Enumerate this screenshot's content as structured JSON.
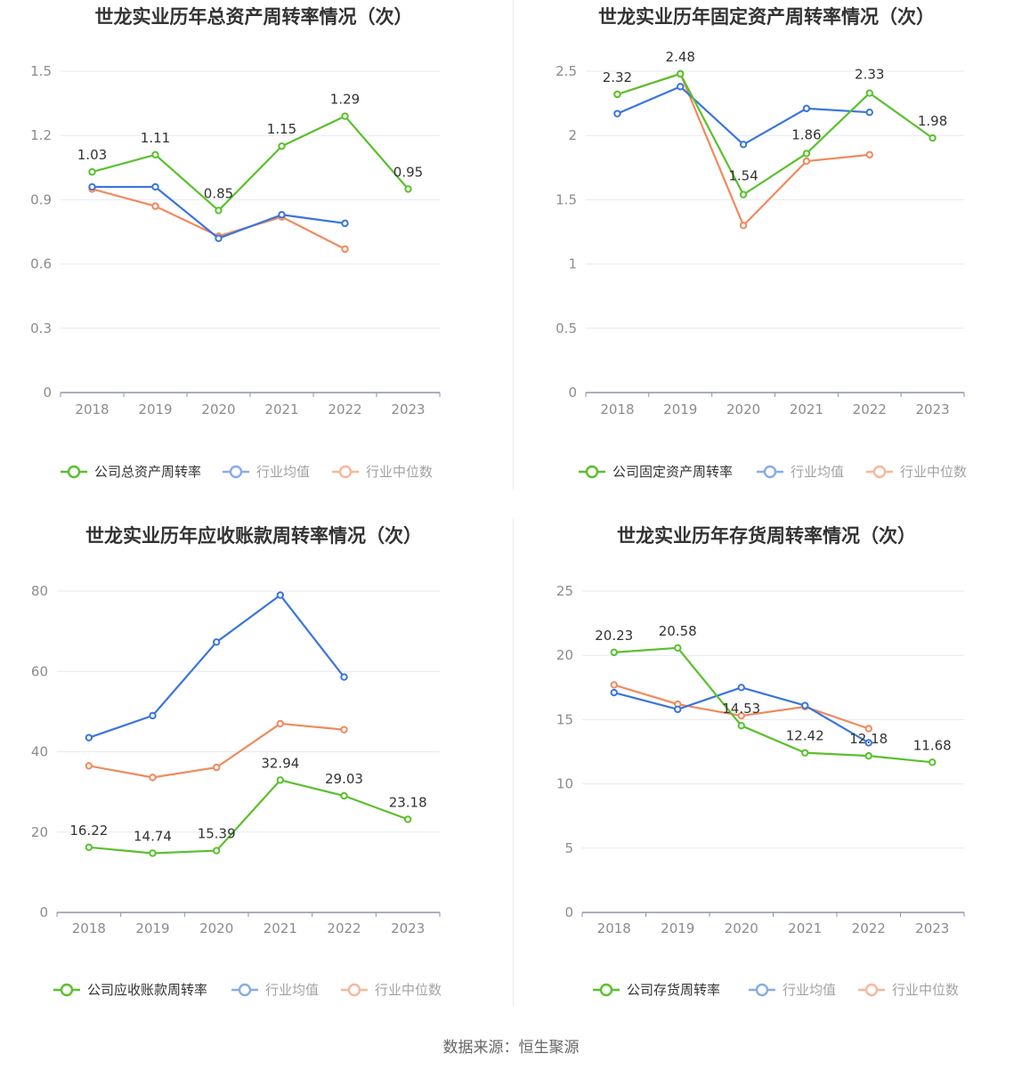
{
  "source": "数据来源：恒生聚源",
  "colors": {
    "company": "#5ac02d",
    "industry_avg": "#3a75dd",
    "industry_median": "#f08a5d"
  },
  "chart_data": [
    {
      "type": "line",
      "title": "世龙实业历年总资产周转率情况（次）",
      "categories": [
        "2018",
        "2019",
        "2020",
        "2021",
        "2022",
        "2023"
      ],
      "ylim": [
        0,
        1.5
      ],
      "yticks": [
        "0",
        "0.3",
        "0.6",
        "0.9",
        "1.2",
        "1.5"
      ],
      "series": [
        {
          "name": "公司总资产周转率",
          "values": [
            1.03,
            1.11,
            0.85,
            1.15,
            1.29,
            0.95
          ],
          "labels": [
            "1.03",
            "1.11",
            "0.85",
            "1.15",
            "1.29",
            "0.95"
          ]
        },
        {
          "name": "行业均值",
          "values": [
            0.96,
            0.96,
            0.72,
            0.83,
            0.79,
            null
          ]
        },
        {
          "name": "行业中位数",
          "values": [
            0.95,
            0.87,
            0.73,
            0.82,
            0.67,
            null
          ]
        }
      ]
    },
    {
      "type": "line",
      "title": "世龙实业历年固定资产周转率情况（次）",
      "categories": [
        "2018",
        "2019",
        "2020",
        "2021",
        "2022",
        "2023"
      ],
      "ylim": [
        0,
        2.5
      ],
      "yticks": [
        "0",
        "0.5",
        "1",
        "1.5",
        "2",
        "2.5"
      ],
      "series": [
        {
          "name": "公司固定资产周转率",
          "values": [
            2.32,
            2.48,
            1.54,
            1.86,
            2.33,
            1.98
          ],
          "labels": [
            "2.32",
            "2.48",
            "1.54",
            "1.86",
            "2.33",
            "1.98"
          ]
        },
        {
          "name": "行业均值",
          "values": [
            2.17,
            2.38,
            1.93,
            2.21,
            2.18,
            null
          ]
        },
        {
          "name": "行业中位数",
          "values": [
            2.32,
            2.48,
            1.3,
            1.8,
            1.85,
            null
          ]
        }
      ]
    },
    {
      "type": "line",
      "title": "世龙实业历年应收账款周转率情况（次）",
      "categories": [
        "2018",
        "2019",
        "2020",
        "2021",
        "2022",
        "2023"
      ],
      "ylim": [
        0,
        80
      ],
      "yticks": [
        "0",
        "20",
        "40",
        "60",
        "80"
      ],
      "series": [
        {
          "name": "公司应收账款周转率",
          "values": [
            16.22,
            14.74,
            15.39,
            32.94,
            29.03,
            23.18
          ],
          "labels": [
            "16.22",
            "14.74",
            "15.39",
            "32.94",
            "29.03",
            "23.18"
          ]
        },
        {
          "name": "行业均值",
          "values": [
            43.5,
            49.0,
            67.3,
            79.0,
            58.6,
            null
          ]
        },
        {
          "name": "行业中位数",
          "values": [
            36.5,
            33.6,
            36.1,
            47.0,
            45.5,
            null
          ]
        }
      ]
    },
    {
      "type": "line",
      "title": "世龙实业历年存货周转率情况（次）",
      "categories": [
        "2018",
        "2019",
        "2020",
        "2021",
        "2022",
        "2023"
      ],
      "ylim": [
        0,
        25
      ],
      "yticks": [
        "0",
        "5",
        "10",
        "15",
        "20",
        "25"
      ],
      "series": [
        {
          "name": "公司存货周转率",
          "values": [
            20.23,
            20.58,
            14.53,
            12.42,
            12.18,
            11.68
          ],
          "labels": [
            "20.23",
            "20.58",
            "14.53",
            "12.42",
            "12.18",
            "11.68"
          ]
        },
        {
          "name": "行业均值",
          "values": [
            17.1,
            15.8,
            17.5,
            16.1,
            13.2,
            null
          ]
        },
        {
          "name": "行业中位数",
          "values": [
            17.7,
            16.2,
            15.3,
            16.0,
            14.3,
            null
          ]
        }
      ]
    }
  ]
}
